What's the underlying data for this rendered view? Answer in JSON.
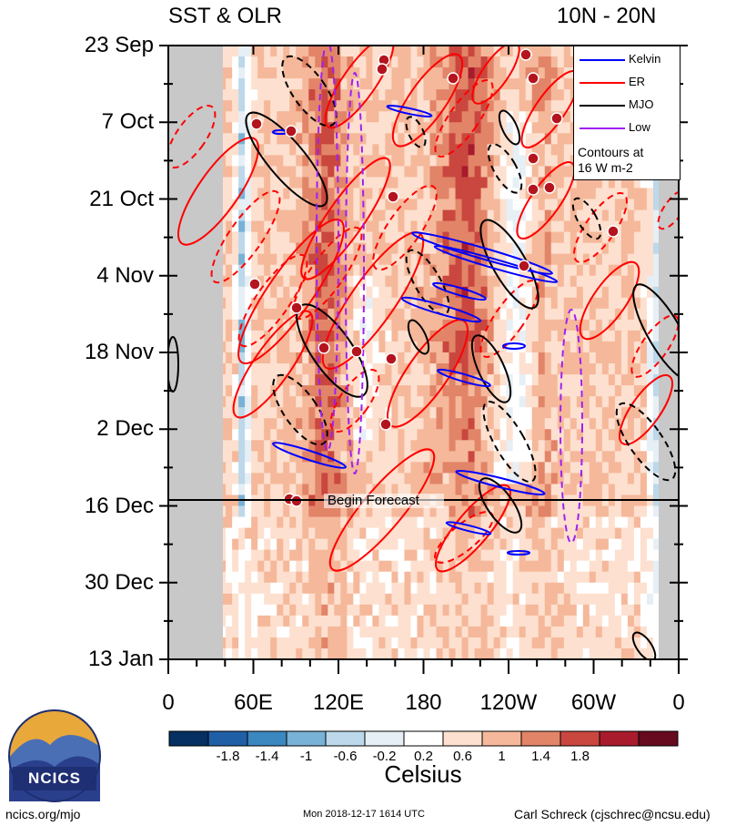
{
  "header": {
    "left_title": "SST & OLR",
    "right_title": "10N - 20N"
  },
  "footer": {
    "left": "ncics.org/mjo",
    "center": "Mon 2018-12-17 1614 UTC",
    "right": "Carl Schreck (cjschrec@ncsu.edu)"
  },
  "logo": {
    "text": "NCICS"
  },
  "forecast_label": "Begin Forecast",
  "legend": {
    "items": [
      {
        "label": "Kelvin",
        "color": "#0000ff",
        "dash": false
      },
      {
        "label": "ER",
        "color": "#ff0000",
        "dash": false
      },
      {
        "label": "MJO",
        "color": "#000000",
        "dash": false
      },
      {
        "label": "Low",
        "color": "#a020f0",
        "dash": false
      }
    ],
    "note_line1": "Contours at",
    "note_line2": "16 W m-2"
  },
  "chart_data": {
    "type": "heatmap",
    "title": "SST & OLR",
    "subtitle": "10N - 20N",
    "y_ticks": [
      "23 Sep",
      "7 Oct",
      "21 Oct",
      "4 Nov",
      "18 Nov",
      "2 Dec",
      "16 Dec",
      "30 Dec",
      "13 Jan"
    ],
    "x_ticks": [
      "0",
      "60E",
      "120E",
      "180",
      "120W",
      "60W",
      "0"
    ],
    "x_range_deg": [
      0,
      360
    ],
    "forecast_start": "16 Dec",
    "colorbar": {
      "label": "Celsius",
      "tick_labels": [
        "-1.8",
        "-1.4",
        "-1",
        "-0.6",
        "-0.2",
        "0.2",
        "0.6",
        "1",
        "1.4",
        "1.8"
      ],
      "colors": [
        "#053061",
        "#1f5fa6",
        "#3b87c0",
        "#78b2d6",
        "#bcd8ea",
        "#e6eff5",
        "#ffffff",
        "#fde0cf",
        "#f5b89a",
        "#e28468",
        "#c9473f",
        "#a71b2d",
        "#670a1f"
      ]
    }
  }
}
